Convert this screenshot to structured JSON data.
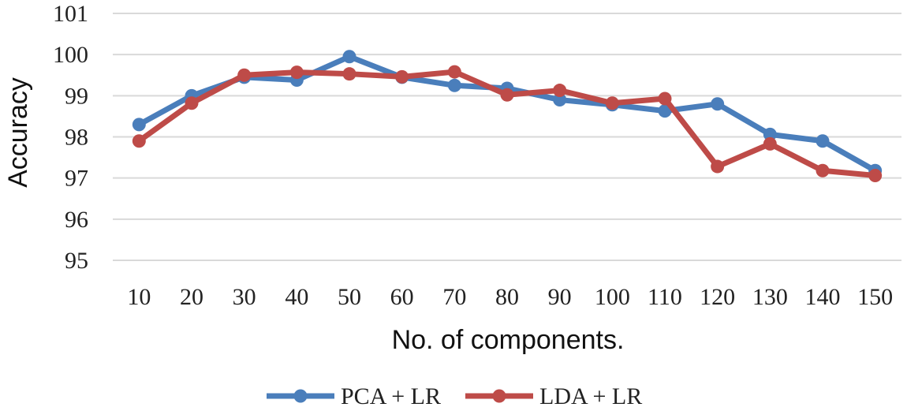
{
  "chart_data": {
    "type": "line",
    "title": "",
    "xlabel": "No. of components.",
    "ylabel": "Accuracy",
    "categories": [
      "10",
      "20",
      "30",
      "40",
      "50",
      "60",
      "70",
      "80",
      "90",
      "100",
      "110",
      "120",
      "130",
      "140",
      "150"
    ],
    "ylim": [
      95,
      101
    ],
    "yticks": [
      "95",
      "96",
      "97",
      "98",
      "99",
      "100",
      "101"
    ],
    "grid": true,
    "legend_position": "bottom",
    "series": [
      {
        "name": "PCA + LR",
        "color": "#4a7ebb",
        "values": [
          98.3,
          99.0,
          99.45,
          99.38,
          99.95,
          99.45,
          99.25,
          99.18,
          98.9,
          98.78,
          98.63,
          98.8,
          98.06,
          97.9,
          97.18
        ]
      },
      {
        "name": "LDA + LR",
        "color": "#be4b48",
        "values": [
          97.9,
          98.82,
          99.5,
          99.57,
          99.53,
          99.46,
          99.58,
          99.02,
          99.13,
          98.82,
          98.93,
          97.28,
          97.83,
          97.18,
          97.06
        ]
      }
    ]
  }
}
